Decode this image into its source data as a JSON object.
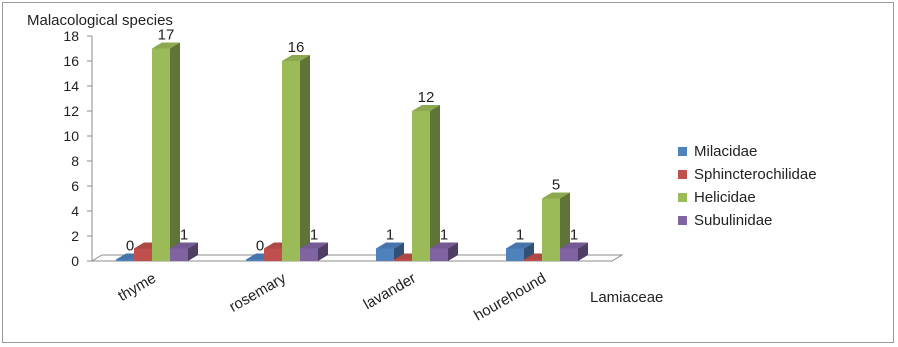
{
  "chart_data": {
    "type": "bar",
    "ylabel": "Malacological species",
    "xlabel": "Lamiaceae",
    "categories": [
      "thyme",
      "rosemary",
      "lavander",
      "hourehound"
    ],
    "ylim": [
      0,
      18
    ],
    "yticks": [
      0,
      2,
      4,
      6,
      8,
      10,
      12,
      14,
      16,
      18
    ],
    "grid": false,
    "legend_position": "right",
    "series": [
      {
        "name": "Milacidae",
        "color": "#4f81bd",
        "values": [
          0,
          0,
          1,
          1
        ],
        "labels": [
          "0",
          "0",
          "1",
          "1"
        ]
      },
      {
        "name": "Sphincterochilidae",
        "color": "#c0504d",
        "values": [
          1,
          1,
          0,
          0
        ],
        "labels": [
          "",
          "",
          "",
          ""
        ]
      },
      {
        "name": "Helicidae",
        "color": "#9bbb59",
        "values": [
          17,
          16,
          12,
          5
        ],
        "labels": [
          "17",
          "16",
          "12",
          "5"
        ]
      },
      {
        "name": "Subulinidae",
        "color": "#8064a2",
        "values": [
          1,
          1,
          1,
          1
        ],
        "labels": [
          "1",
          "1",
          "1",
          "1"
        ]
      }
    ]
  }
}
